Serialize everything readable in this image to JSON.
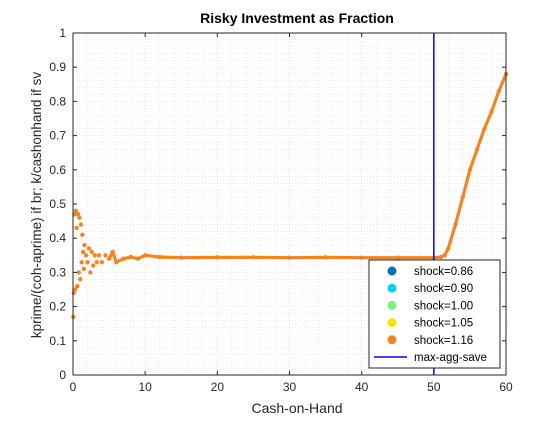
{
  "chart_data": {
    "type": "scatter",
    "title": "Risky Investment as Fraction",
    "xlabel": "Cash-on-Hand",
    "ylabel": "kprime/(coh-aprime) if br; k/cashonhand if sv",
    "xlim": [
      0,
      60
    ],
    "ylim": [
      0,
      1
    ],
    "xticks": [
      0,
      10,
      20,
      30,
      40,
      50,
      60
    ],
    "yticks": [
      0,
      0.1,
      0.2,
      0.3,
      0.4,
      0.5,
      0.6,
      0.7,
      0.8,
      0.9,
      1
    ],
    "grid": "minor dotted",
    "legend_position": "bottom-right",
    "series": [
      {
        "name": "shock=0.86",
        "color": "#0072BD",
        "marker": "dot",
        "visible_data": false
      },
      {
        "name": "shock=0.90",
        "color": "#00D5EE",
        "marker": "dot",
        "visible_data": false
      },
      {
        "name": "shock=1.00",
        "color": "#7CF37C",
        "marker": "dot",
        "visible_data": false
      },
      {
        "name": "shock=1.05",
        "color": "#F2E600",
        "marker": "dot",
        "visible_data": false
      },
      {
        "name": "shock=1.16",
        "color": "#F28522",
        "marker": "dot",
        "x": [
          0.05,
          0.1,
          0.2,
          0.3,
          0.4,
          0.5,
          0.6,
          0.7,
          0.8,
          0.9,
          1.0,
          1.1,
          1.2,
          1.3,
          1.4,
          1.5,
          1.6,
          1.8,
          2.0,
          2.2,
          2.4,
          2.6,
          2.8,
          3.0,
          3.3,
          3.6,
          4.0,
          4.5,
          5.0,
          5.5,
          6.0,
          7.0,
          8.0,
          9.0,
          10.0,
          12.0,
          15.0,
          20.0,
          25.0,
          30.0,
          35.0,
          40.0,
          45.0,
          50.0,
          51.0,
          51.5,
          52.0,
          53.0,
          54.0,
          55.0,
          56.0,
          57.0,
          58.0,
          59.0,
          60.0
        ],
        "y": [
          0.17,
          0.24,
          0.47,
          0.25,
          0.48,
          0.43,
          0.26,
          0.47,
          0.3,
          0.46,
          0.28,
          0.44,
          0.33,
          0.41,
          0.36,
          0.31,
          0.38,
          0.35,
          0.33,
          0.37,
          0.3,
          0.36,
          0.32,
          0.35,
          0.33,
          0.35,
          0.33,
          0.35,
          0.34,
          0.36,
          0.33,
          0.34,
          0.345,
          0.34,
          0.35,
          0.345,
          0.343,
          0.344,
          0.344,
          0.343,
          0.344,
          0.343,
          0.343,
          0.343,
          0.345,
          0.35,
          0.37,
          0.44,
          0.52,
          0.6,
          0.66,
          0.72,
          0.77,
          0.83,
          0.88
        ]
      },
      {
        "name": "max-agg-save",
        "color": "#0000FF",
        "marker": "line",
        "type": "vertical-line",
        "x": 50
      }
    ]
  }
}
